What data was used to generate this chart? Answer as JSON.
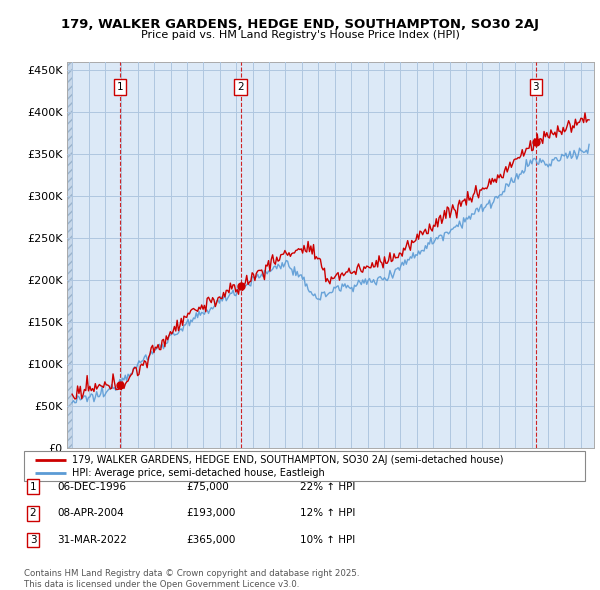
{
  "title": "179, WALKER GARDENS, HEDGE END, SOUTHAMPTON, SO30 2AJ",
  "subtitle": "Price paid vs. HM Land Registry's House Price Index (HPI)",
  "ylim": [
    0,
    460000
  ],
  "yticks": [
    0,
    50000,
    100000,
    150000,
    200000,
    250000,
    300000,
    350000,
    400000,
    450000
  ],
  "chart_bg_color": "#dce9f7",
  "hatch_color": "#c8d8ea",
  "grid_color": "#afc6e0",
  "property_color": "#cc0000",
  "hpi_color": "#5b9bd5",
  "sale_vline_color": "#cc0000",
  "sales": [
    {
      "label": "1",
      "date_x": 1996.92,
      "price": 75000
    },
    {
      "label": "2",
      "date_x": 2004.27,
      "price": 193000
    },
    {
      "label": "3",
      "date_x": 2022.25,
      "price": 365000
    }
  ],
  "footnote": "Contains HM Land Registry data © Crown copyright and database right 2025.\nThis data is licensed under the Open Government Licence v3.0.",
  "legend_property": "179, WALKER GARDENS, HEDGE END, SOUTHAMPTON, SO30 2AJ (semi-detached house)",
  "legend_hpi": "HPI: Average price, semi-detached house, Eastleigh",
  "table_rows": [
    {
      "num": "1",
      "date": "06-DEC-1996",
      "price": "£75,000",
      "hpi": "22% ↑ HPI"
    },
    {
      "num": "2",
      "date": "08-APR-2004",
      "price": "£193,000",
      "hpi": "12% ↑ HPI"
    },
    {
      "num": "3",
      "date": "31-MAR-2022",
      "price": "£365,000",
      "hpi": "10% ↑ HPI"
    }
  ],
  "xmin": 1993.7,
  "xmax": 2025.8
}
